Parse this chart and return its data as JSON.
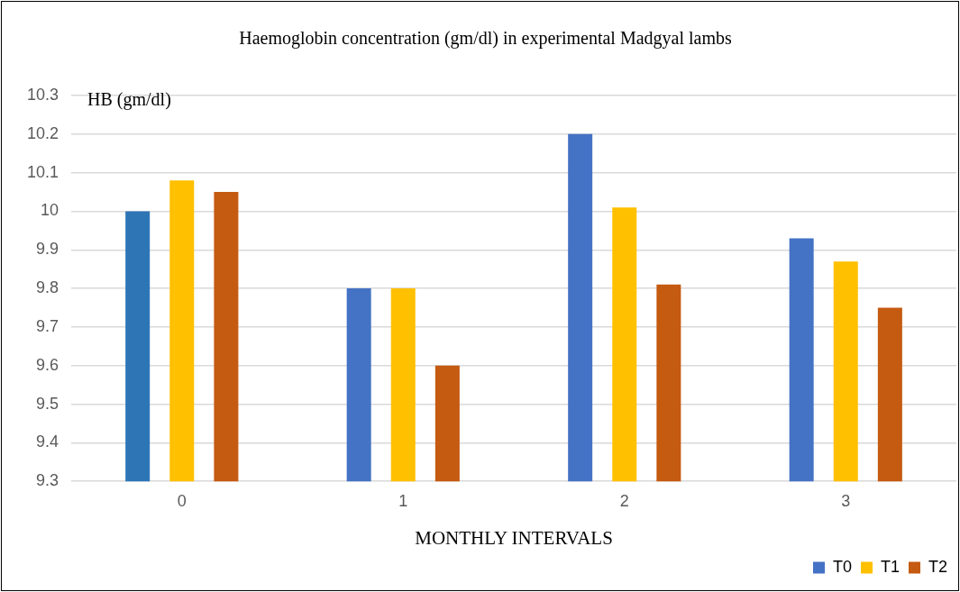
{
  "chart_data": {
    "type": "bar",
    "title": "Haemoglobin concentration (gm/dl) in experimental Madgyal lambs",
    "xlabel": "MONTHLY INTERVALS",
    "ylabel": "HB (gm/dl)",
    "categories": [
      "0",
      "1",
      "2",
      "3"
    ],
    "series": [
      {
        "name": "T0",
        "color": "#4472c4",
        "colors": [
          "#2e75b6",
          "#4472c4",
          "#4472c4",
          "#4472c4"
        ],
        "values": [
          10.0,
          9.8,
          10.2,
          9.93
        ]
      },
      {
        "name": "T1",
        "color": "#ffc000",
        "values": [
          10.08,
          9.8,
          10.01,
          9.87
        ]
      },
      {
        "name": "T2",
        "color": "#c55a11",
        "values": [
          10.05,
          9.6,
          9.81,
          9.75
        ]
      }
    ],
    "ylim": [
      9.3,
      10.3
    ],
    "yticks": [
      9.3,
      9.4,
      9.5,
      9.6,
      9.7,
      9.8,
      9.9,
      10,
      10.1,
      10.2,
      10.3
    ],
    "grid": "y",
    "legend": "bottom right"
  }
}
